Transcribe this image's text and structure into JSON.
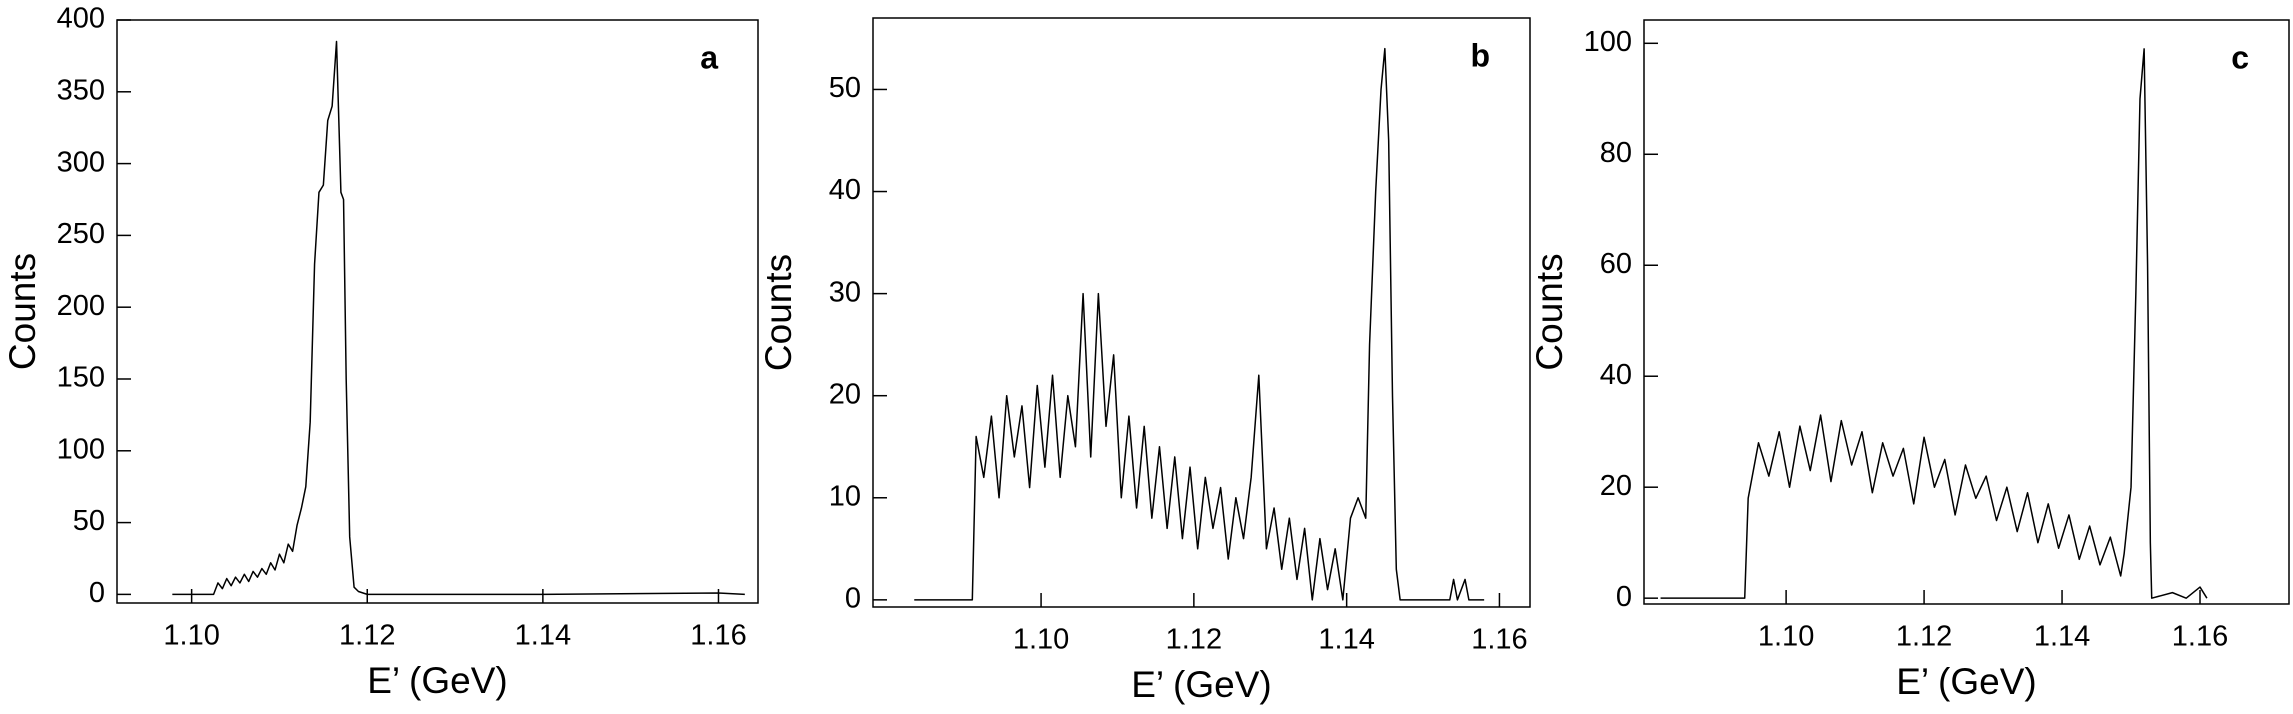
{
  "chart_data": [
    {
      "type": "line",
      "panel_label": "a",
      "y_label": "Counts",
      "x_label": "E’ (GeV)",
      "color": "#000000",
      "xlim": [
        1.0915,
        1.1645
      ],
      "ylim": [
        -6,
        400
      ],
      "xticks": [
        {
          "value": 1.1,
          "label": "1.10"
        },
        {
          "value": 1.12,
          "label": "1.12"
        },
        {
          "value": 1.14,
          "label": "1.14"
        },
        {
          "value": 1.16,
          "label": "1.16"
        }
      ],
      "yticks": [
        0,
        50,
        100,
        150,
        200,
        250,
        300,
        350,
        400
      ],
      "x": [
        1.0978,
        1.1025,
        1.103,
        1.1035,
        1.104,
        1.1045,
        1.105,
        1.1055,
        1.106,
        1.1065,
        1.107,
        1.1075,
        1.108,
        1.1085,
        1.109,
        1.1095,
        1.11,
        1.1105,
        1.111,
        1.1115,
        1.112,
        1.1125,
        1.113,
        1.1135,
        1.114,
        1.1145,
        1.115,
        1.1155,
        1.116,
        1.1165,
        1.117,
        1.1173,
        1.1176,
        1.118,
        1.1185,
        1.119,
        1.12,
        1.14,
        1.16,
        1.163
      ],
      "values": [
        0,
        0,
        8,
        4,
        11,
        6,
        12,
        8,
        14,
        9,
        16,
        12,
        18,
        14,
        22,
        17,
        28,
        22,
        35,
        30,
        48,
        60,
        75,
        120,
        230,
        280,
        285,
        330,
        340,
        385,
        280,
        275,
        150,
        40,
        5,
        2,
        0,
        0,
        1,
        0
      ]
    },
    {
      "type": "line",
      "panel_label": "b",
      "y_label": "Counts",
      "x_label": "E’ (GeV)",
      "color": "#000000",
      "xlim": [
        1.078,
        1.164
      ],
      "ylim": [
        -0.7,
        57
      ],
      "xticks": [
        {
          "value": 1.1,
          "label": "1.10"
        },
        {
          "value": 1.12,
          "label": "1.12"
        },
        {
          "value": 1.14,
          "label": "1.14"
        },
        {
          "value": 1.16,
          "label": "1.16"
        }
      ],
      "yticks": [
        0,
        10,
        20,
        30,
        40,
        50
      ],
      "x": [
        1.0834,
        1.091,
        1.0915,
        1.0925,
        1.0935,
        1.0945,
        1.0955,
        1.0965,
        1.0975,
        1.0985,
        1.0995,
        1.1005,
        1.1015,
        1.1025,
        1.1035,
        1.1045,
        1.1055,
        1.1065,
        1.1075,
        1.1085,
        1.1095,
        1.1105,
        1.1115,
        1.1125,
        1.1135,
        1.1145,
        1.1155,
        1.1165,
        1.1175,
        1.1185,
        1.1195,
        1.1205,
        1.1215,
        1.1225,
        1.1235,
        1.1245,
        1.1255,
        1.1265,
        1.1275,
        1.1285,
        1.1295,
        1.1305,
        1.1315,
        1.1325,
        1.1335,
        1.1345,
        1.1355,
        1.1365,
        1.1375,
        1.1385,
        1.1395,
        1.1405,
        1.1415,
        1.1425,
        1.143,
        1.1438,
        1.1445,
        1.145,
        1.1455,
        1.146,
        1.1465,
        1.147,
        1.1535,
        1.154,
        1.1545,
        1.1555,
        1.156,
        1.158
      ],
      "values": [
        0,
        0,
        16,
        12,
        18,
        10,
        20,
        14,
        19,
        11,
        21,
        13,
        22,
        12,
        20,
        15,
        30,
        14,
        30,
        17,
        24,
        10,
        18,
        9,
        17,
        8,
        15,
        7,
        14,
        6,
        13,
        5,
        12,
        7,
        11,
        4,
        10,
        6,
        12,
        22,
        5,
        9,
        3,
        8,
        2,
        7,
        0,
        6,
        1,
        5,
        0,
        8,
        10,
        8,
        25,
        40,
        50,
        54,
        45,
        20,
        3,
        0,
        0,
        2,
        0,
        2,
        0,
        0
      ]
    },
    {
      "type": "line",
      "panel_label": "c",
      "y_label": "Counts",
      "x_label": "E’ (GeV)",
      "color": "#000000",
      "xlim": [
        1.0794,
        1.1729
      ],
      "ylim": [
        -1.05,
        104.2
      ],
      "xticks": [
        {
          "value": 1.1,
          "label": "1.10"
        },
        {
          "value": 1.12,
          "label": "1.12"
        },
        {
          "value": 1.14,
          "label": "1.14"
        },
        {
          "value": 1.16,
          "label": "1.16"
        }
      ],
      "yticks": [
        0,
        20,
        40,
        60,
        80,
        100
      ],
      "x": [
        1.0818,
        1.094,
        1.0945,
        1.096,
        1.0975,
        1.099,
        1.1005,
        1.102,
        1.1035,
        1.105,
        1.1065,
        1.108,
        1.1095,
        1.111,
        1.1125,
        1.114,
        1.1155,
        1.117,
        1.1185,
        1.12,
        1.1215,
        1.123,
        1.1245,
        1.126,
        1.1275,
        1.129,
        1.1305,
        1.132,
        1.1335,
        1.135,
        1.1365,
        1.138,
        1.1395,
        1.141,
        1.1425,
        1.144,
        1.1455,
        1.147,
        1.1485,
        1.149,
        1.15,
        1.1507,
        1.1513,
        1.1519,
        1.1524,
        1.1528,
        1.153,
        1.156,
        1.158,
        1.16,
        1.161
      ],
      "values": [
        0,
        0,
        18,
        28,
        22,
        30,
        20,
        31,
        23,
        33,
        21,
        32,
        24,
        30,
        19,
        28,
        22,
        27,
        17,
        29,
        20,
        25,
        15,
        24,
        18,
        22,
        14,
        20,
        12,
        19,
        10,
        17,
        9,
        15,
        7,
        13,
        6,
        11,
        4,
        8,
        20,
        55,
        90,
        99,
        60,
        10,
        0,
        1,
        0,
        2,
        0
      ]
    }
  ]
}
